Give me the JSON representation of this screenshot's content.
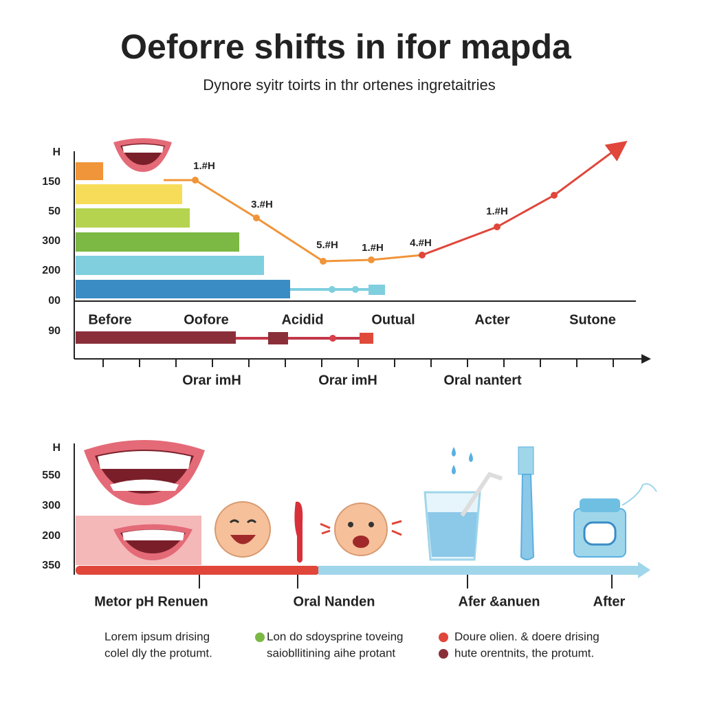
{
  "header": {
    "title": "Oeforre shifts in ifor mapda",
    "subtitle": "Dynore syitr toirts in thr ortenes ingretaitries"
  },
  "top_panel": {
    "axis_title": "H",
    "axis_labels": [
      "150",
      "50",
      "300",
      "200",
      "00",
      "90"
    ],
    "point_labels": [
      "1.#H",
      "3.#H",
      "5.#H",
      "1.#H",
      "4.#H",
      "1.#H"
    ],
    "categories": [
      "Before",
      "Oofore",
      "Acidid",
      "Outual",
      "Acter",
      "Sutone"
    ],
    "bottom_labels": [
      "Orar imH",
      "Orar imH",
      "Oral nantert"
    ]
  },
  "bottom_panel": {
    "axis_title": "H",
    "axis_labels": [
      "550",
      "300",
      "200",
      "350"
    ],
    "categories": [
      "Metor pH Renuen",
      "Oral Nanden",
      "Afer &anuen",
      "After"
    ]
  },
  "legend": [
    {
      "lines": [
        "Lorem ipsum drising",
        "colel dly the protumt."
      ]
    },
    {
      "lines": [
        "Lon do sdoysprine toveing",
        "saiobllitining aihe protant"
      ]
    },
    {
      "lines": [
        "Doure olien. & doere drising"
      ]
    },
    {
      "lines": [
        "hute orentnits, the protumt."
      ]
    }
  ]
}
